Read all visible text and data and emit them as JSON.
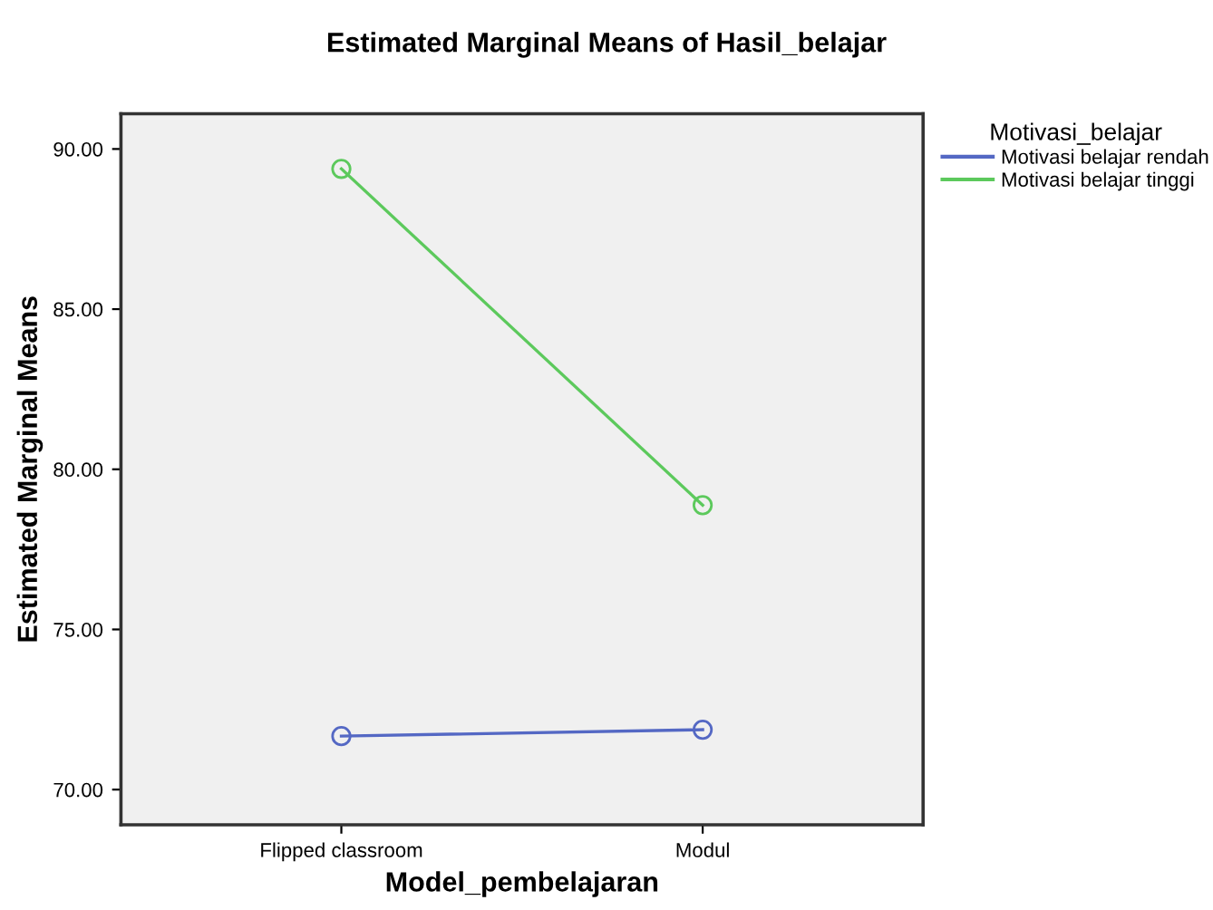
{
  "chart_data": {
    "type": "line",
    "title": "Estimated Marginal Means of Hasil_belajar",
    "xlabel": "Model_pembelajaran",
    "ylabel": "Estimated Marginal Means",
    "legend_title": "Motivasi_belajar",
    "categories": [
      "Flipped classroom",
      "Modul"
    ],
    "series": [
      {
        "name": "Motivasi belajar rendah",
        "color": "#5468c4",
        "values": [
          71.67,
          71.87
        ]
      },
      {
        "name": "Motivasi belajar tinggi",
        "color": "#5cc95c",
        "values": [
          89.38,
          78.88
        ]
      }
    ],
    "ylim": [
      68.9,
      91.1
    ],
    "yticks": [
      {
        "value": 70,
        "label": "70.00"
      },
      {
        "value": 75,
        "label": "75.00"
      },
      {
        "value": 80,
        "label": "80.00"
      },
      {
        "value": 85,
        "label": "85.00"
      },
      {
        "value": 90,
        "label": "90.00"
      }
    ],
    "marker": "circle",
    "line_style": "solid",
    "grid": false,
    "legend": "top right"
  }
}
